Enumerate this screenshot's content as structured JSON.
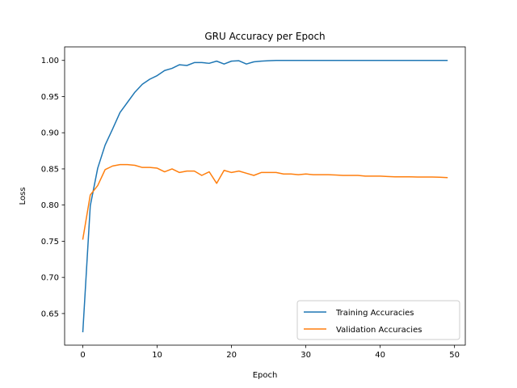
{
  "colors": {
    "background": "#ffffff",
    "axes": "#000000",
    "training": "#1f77b4",
    "validation": "#ff7f0e",
    "legend_border": "#cccccc"
  },
  "chart_data": {
    "type": "line",
    "title": "GRU Accuracy per Epoch",
    "xlabel": "Epoch",
    "ylabel": "Loss",
    "xlim": [
      -2.45,
      51.45
    ],
    "ylim": [
      0.6063,
      1.0187
    ],
    "xticks": [
      0,
      10,
      20,
      30,
      40,
      50
    ],
    "xtick_labels": [
      "0",
      "10",
      "20",
      "30",
      "40",
      "50"
    ],
    "yticks": [
      0.65,
      0.7,
      0.75,
      0.8,
      0.85,
      0.9,
      0.95,
      1.0
    ],
    "ytick_labels": [
      "0.65",
      "0.70",
      "0.75",
      "0.80",
      "0.85",
      "0.90",
      "0.95",
      "1.00"
    ],
    "grid": false,
    "legend_position": "lower right",
    "x": [
      0,
      1,
      2,
      3,
      4,
      5,
      6,
      7,
      8,
      9,
      10,
      11,
      12,
      13,
      14,
      15,
      16,
      17,
      18,
      19,
      20,
      21,
      22,
      23,
      24,
      25,
      26,
      27,
      28,
      29,
      30,
      31,
      32,
      33,
      34,
      35,
      36,
      37,
      38,
      39,
      40,
      41,
      42,
      43,
      44,
      45,
      46,
      47,
      48,
      49
    ],
    "series": [
      {
        "name": "Training Accuracies",
        "color": "#1f77b4",
        "values": [
          0.625,
          0.799,
          0.851,
          0.883,
          0.905,
          0.928,
          0.942,
          0.956,
          0.967,
          0.974,
          0.979,
          0.986,
          0.989,
          0.994,
          0.993,
          0.997,
          0.997,
          0.996,
          0.999,
          0.995,
          0.999,
          0.9995,
          0.995,
          0.998,
          0.999,
          0.9995,
          1.0,
          1.0,
          1.0,
          1.0,
          1.0,
          1.0,
          1.0,
          1.0,
          1.0,
          1.0,
          1.0,
          1.0,
          1.0,
          1.0,
          1.0,
          1.0,
          1.0,
          1.0,
          1.0,
          1.0,
          1.0,
          1.0,
          1.0,
          1.0
        ]
      },
      {
        "name": "Validation Accuracies",
        "color": "#ff7f0e",
        "values": [
          0.753,
          0.814,
          0.827,
          0.849,
          0.854,
          0.856,
          0.856,
          0.855,
          0.852,
          0.852,
          0.851,
          0.846,
          0.85,
          0.845,
          0.847,
          0.847,
          0.841,
          0.846,
          0.83,
          0.848,
          0.845,
          0.847,
          0.844,
          0.841,
          0.845,
          0.845,
          0.845,
          0.843,
          0.843,
          0.842,
          0.843,
          0.842,
          0.842,
          0.842,
          0.8415,
          0.841,
          0.841,
          0.841,
          0.84,
          0.84,
          0.84,
          0.8395,
          0.839,
          0.839,
          0.839,
          0.8388,
          0.8388,
          0.8388,
          0.8385,
          0.838
        ]
      }
    ]
  }
}
